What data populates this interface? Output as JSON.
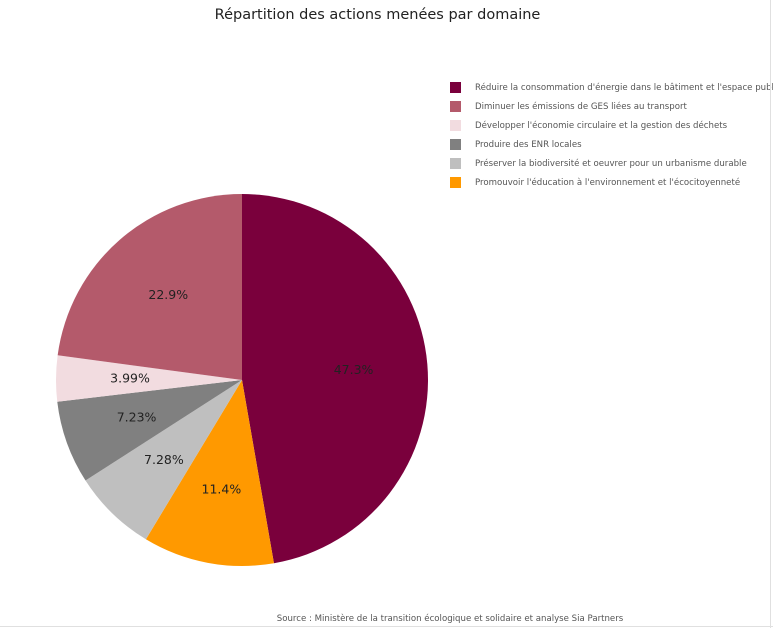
{
  "chart_data": {
    "type": "pie",
    "title": "Répartition des actions menées par domaine",
    "labels": [
      "Réduire la consommation d'énergie dans le bâtiment et l'espace public",
      "Promouvoir l'éducation à l'environnement et l'écocitoyenneté",
      "Préserver la biodiversité et oeuvrer pour un urbanisme durable",
      "Produire des ENR locales",
      "Développer l'économie circulaire et la gestion des déchets",
      "Diminuer les émissions de GES liées au transport"
    ],
    "values": [
      47.3,
      11.4,
      7.28,
      7.23,
      3.99,
      22.9
    ],
    "value_labels": [
      "47.3%",
      "11.4%",
      "7.28%",
      "7.23%",
      "3.99%",
      "22.9%"
    ],
    "colors": [
      "#7a003c",
      "#ff9900",
      "#bfbfbf",
      "#808080",
      "#f2dce0",
      "#b45a6b"
    ],
    "legend": {
      "placement": "top-right",
      "items": [
        {
          "label": "Réduire la consommation d'énergie dans le bâtiment et l'espace public",
          "color": "#7a003c"
        },
        {
          "label": "Diminuer les émissions de GES liées au transport",
          "color": "#b45a6b"
        },
        {
          "label": "Développer l'économie circulaire et la gestion des déchets",
          "color": "#f2dce0"
        },
        {
          "label": "Produire des ENR locales",
          "color": "#808080"
        },
        {
          "label": "Préserver la biodiversité et oeuvrer pour un urbanisme durable",
          "color": "#bfbfbf"
        },
        {
          "label": "Promouvoir l'éducation à l'environnement et l'écocitoyenneté",
          "color": "#ff9900"
        }
      ]
    },
    "direction": "clockwise",
    "start": "top"
  },
  "source": "Source : Ministère de la transition écologique et solidaire et analyse Sia Partners"
}
